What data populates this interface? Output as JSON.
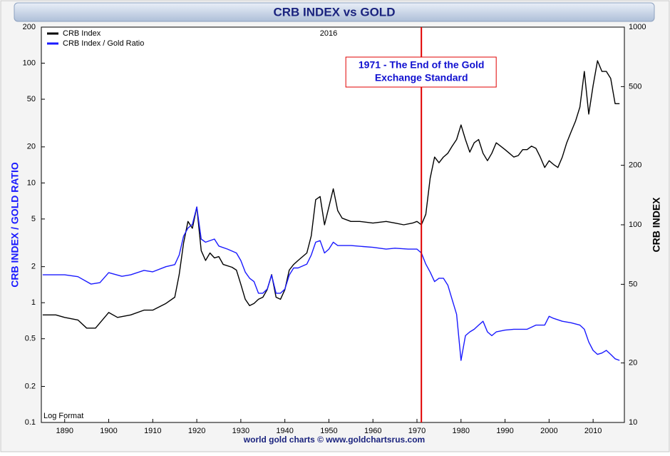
{
  "chart_data": {
    "type": "line",
    "title": "CRB INDEX vs GOLD",
    "y_label": "CRB INDEX / GOLD RATIO",
    "y2_label": "CRB INDEX",
    "date_label": "2016",
    "scale_note": "Log Format",
    "footer": "world gold charts © www.goldchartsrus.com",
    "log_scale": true,
    "legend": "top-left",
    "xlim": [
      1884.7,
      2017.1
    ],
    "xticks": [
      1890,
      1900,
      1910,
      1920,
      1930,
      1940,
      1950,
      1960,
      1970,
      1980,
      1990,
      2000,
      2010
    ],
    "ylim": [
      0.1,
      200
    ],
    "yticks": [
      0.1,
      0.2,
      0.5,
      1,
      2,
      5,
      10,
      20,
      50,
      100,
      200
    ],
    "y2lim": [
      10,
      1000
    ],
    "y2ticks": [
      10,
      20,
      50,
      100,
      200,
      500,
      1000
    ],
    "annotations": [
      {
        "lines": [
          "1971 - The End of the Gold",
          "Exchange Standard"
        ],
        "x": 1971,
        "color": "#e00000",
        "text_color": "#1010d0"
      }
    ],
    "series": [
      {
        "name": "CRB Index",
        "color": "#000000",
        "axis": "y2",
        "x": [
          1885,
          1888,
          1890,
          1893,
          1895,
          1897,
          1900,
          1902,
          1905,
          1908,
          1910,
          1913,
          1915,
          1916,
          1917,
          1918,
          1919,
          1920,
          1921,
          1922,
          1923,
          1924,
          1925,
          1926,
          1928,
          1929,
          1930,
          1931,
          1932,
          1933,
          1934,
          1935,
          1936,
          1937,
          1938,
          1939,
          1940,
          1941,
          1942,
          1943,
          1945,
          1946,
          1947,
          1948,
          1949,
          1950,
          1951,
          1952,
          1953,
          1955,
          1957,
          1960,
          1963,
          1965,
          1967,
          1969,
          1970,
          1971,
          1972,
          1973,
          1974,
          1975,
          1976,
          1977,
          1978,
          1979,
          1980,
          1981,
          1982,
          1983,
          1984,
          1985,
          1986,
          1987,
          1988,
          1989,
          1990,
          1991,
          1992,
          1993,
          1994,
          1995,
          1996,
          1997,
          1998,
          1999,
          2000,
          2001,
          2002,
          2003,
          2004,
          2005,
          2006,
          2007,
          2008,
          2009,
          2010,
          2011,
          2012,
          2013,
          2014,
          2015,
          2016
        ],
        "values": [
          35,
          35,
          34,
          33,
          30,
          30,
          36,
          34,
          35,
          37,
          37,
          40,
          43,
          56,
          81,
          104,
          96,
          123,
          74,
          66,
          72,
          68,
          69,
          63,
          61,
          59,
          50,
          42,
          39,
          40,
          42,
          43,
          47,
          56,
          43,
          42,
          47,
          59,
          63,
          66,
          72,
          88,
          134,
          139,
          100,
          123,
          152,
          118,
          108,
          104,
          104,
          102,
          104,
          102,
          100,
          102,
          104,
          100,
          113,
          172,
          220,
          206,
          220,
          230,
          250,
          270,
          320,
          270,
          233,
          260,
          270,
          230,
          211,
          230,
          260,
          250,
          240,
          230,
          220,
          224,
          240,
          240,
          250,
          244,
          220,
          195,
          211,
          202,
          195,
          220,
          260,
          295,
          334,
          394,
          597,
          363,
          506,
          676,
          597,
          597,
          550,
          410,
          410
        ]
      },
      {
        "name": "CRB Index / Gold Ratio",
        "color": "#1a1aff",
        "axis": "y",
        "x": [
          1885,
          1890,
          1893,
          1896,
          1898,
          1900,
          1903,
          1905,
          1908,
          1910,
          1913,
          1915,
          1916,
          1917,
          1918,
          1919,
          1920,
          1921,
          1922,
          1924,
          1925,
          1927,
          1929,
          1930,
          1931,
          1932,
          1933,
          1934,
          1935,
          1936,
          1937,
          1938,
          1939,
          1940,
          1941,
          1942,
          1943,
          1945,
          1946,
          1947,
          1948,
          1949,
          1950,
          1951,
          1952,
          1955,
          1960,
          1963,
          1965,
          1968,
          1970,
          1971,
          1972,
          1973,
          1974,
          1975,
          1976,
          1977,
          1978,
          1979,
          1980,
          1981,
          1982,
          1983,
          1984,
          1985,
          1986,
          1987,
          1988,
          1990,
          1992,
          1995,
          1997,
          1999,
          2000,
          2001,
          2003,
          2005,
          2007,
          2008,
          2009,
          2010,
          2011,
          2012,
          2013,
          2014,
          2015,
          2016
        ],
        "values": [
          1.71,
          1.71,
          1.65,
          1.43,
          1.47,
          1.78,
          1.66,
          1.71,
          1.86,
          1.81,
          2.0,
          2.08,
          2.5,
          3.6,
          4.2,
          4.5,
          6.3,
          3.4,
          3.2,
          3.4,
          2.97,
          2.8,
          2.6,
          2.25,
          1.8,
          1.6,
          1.5,
          1.2,
          1.2,
          1.3,
          1.7,
          1.2,
          1.2,
          1.3,
          1.7,
          1.95,
          1.95,
          2.1,
          2.5,
          3.2,
          3.3,
          2.6,
          2.8,
          3.2,
          3.0,
          3.0,
          2.9,
          2.8,
          2.85,
          2.8,
          2.8,
          2.6,
          2.1,
          1.8,
          1.5,
          1.6,
          1.6,
          1.4,
          1.06,
          0.8,
          0.33,
          0.53,
          0.57,
          0.6,
          0.65,
          0.7,
          0.57,
          0.53,
          0.57,
          0.59,
          0.6,
          0.6,
          0.65,
          0.65,
          0.77,
          0.74,
          0.7,
          0.68,
          0.65,
          0.6,
          0.47,
          0.4,
          0.37,
          0.38,
          0.4,
          0.37,
          0.34,
          0.33
        ]
      }
    ]
  }
}
